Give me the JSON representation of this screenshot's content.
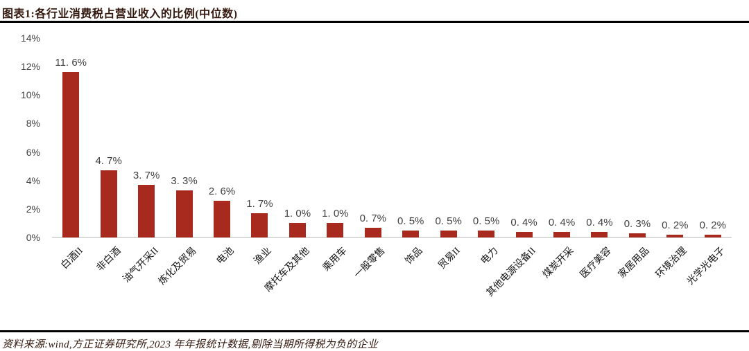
{
  "header": {
    "title": "图表1:各行业消费税占营业收入的比例(中位数)"
  },
  "footer": {
    "source_note": "资料来源:wind,方正证券研究所,2023 年年报统计数据,剔除当期所得税为负的企业"
  },
  "colors": {
    "bar": "#a8291d",
    "axis_line": "#d9d9d9",
    "rule_line": "#000000",
    "tick_text": "#3f3f3f",
    "title_text": "#34190f"
  },
  "chart_data": {
    "type": "bar",
    "title": "图表1:各行业消费税占营业收入的比例(中位数)",
    "xlabel": "",
    "ylabel": "",
    "ylim": [
      0,
      14
    ],
    "grid": false,
    "legend": "none",
    "ytick_values": [
      0,
      2,
      4,
      6,
      8,
      10,
      12,
      14
    ],
    "ytick_labels": [
      "0%",
      "2%",
      "4%",
      "6%",
      "8%",
      "10%",
      "12%",
      "14%"
    ],
    "categories": [
      "白酒II",
      "非白酒",
      "油气开采II",
      "炼化及贸易",
      "电池",
      "渔业",
      "摩托车及其他",
      "乘用车",
      "一般零售",
      "饰品",
      "贸易II",
      "电力",
      "其他电源设备II",
      "煤炭开采",
      "医疗美容",
      "家居用品",
      "环境治理",
      "光学光电子"
    ],
    "values": [
      11.6,
      4.7,
      3.7,
      3.3,
      2.6,
      1.7,
      1.0,
      1.0,
      0.7,
      0.5,
      0.5,
      0.5,
      0.4,
      0.4,
      0.4,
      0.3,
      0.2,
      0.2
    ],
    "value_labels": [
      "11. 6%",
      "4. 7%",
      "3. 7%",
      "3. 3%",
      "2. 6%",
      "1. 7%",
      "1. 0%",
      "1. 0%",
      "0. 7%",
      "0. 5%",
      "0. 5%",
      "0. 5%",
      "0. 4%",
      "0. 4%",
      "0. 4%",
      "0. 3%",
      "0. 2%",
      "0. 2%"
    ]
  }
}
